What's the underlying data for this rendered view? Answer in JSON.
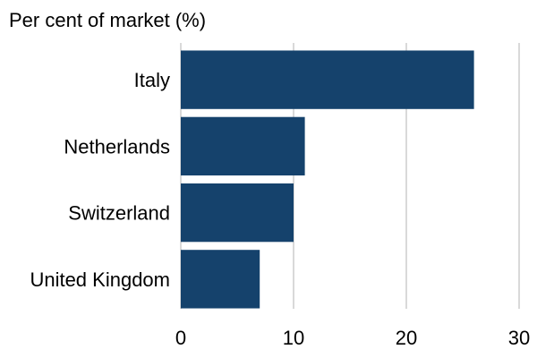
{
  "chart_data": {
    "type": "bar",
    "orientation": "horizontal",
    "title": "Per cent of market (%)",
    "xlabel": "",
    "ylabel": "",
    "categories": [
      "Italy",
      "Netherlands",
      "Switzerland",
      "United Kingdom"
    ],
    "values": [
      26,
      11,
      10,
      7
    ],
    "xlim": [
      0,
      30
    ],
    "xticks": [
      "0",
      "10",
      "20",
      "30"
    ],
    "grid": "vertical",
    "legend": "none",
    "bar_color": "#15426c",
    "grid_color": "#d9d9d9"
  }
}
